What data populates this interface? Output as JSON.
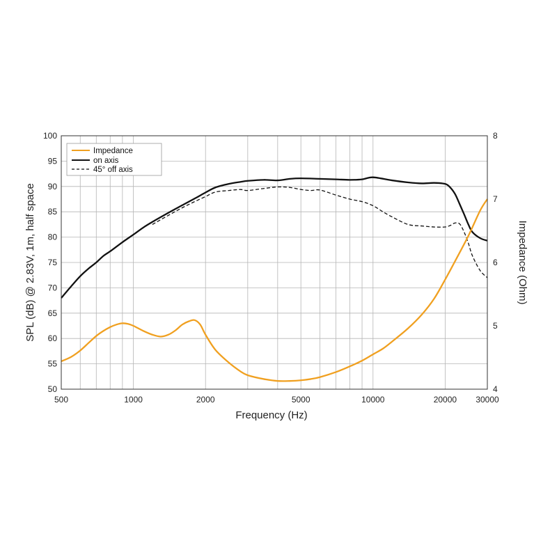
{
  "chart_data": {
    "type": "line",
    "xlabel": "Frequency (Hz)",
    "ylabel_left": "SPL (dB) @ 2.83V, 1m, half space",
    "ylabel_right": "Impedance (Ohm)",
    "x_scale": "log",
    "xlim": [
      500,
      30000
    ],
    "ylim_left": [
      50,
      100
    ],
    "ylim_right": [
      4,
      8
    ],
    "x_tick_labels": [
      "500",
      "1000",
      "2000",
      "5000",
      "10000",
      "20000",
      "30000"
    ],
    "y_tick_labels_left": [
      "50",
      "55",
      "60",
      "65",
      "70",
      "75",
      "80",
      "85",
      "90",
      "95",
      "100"
    ],
    "y_tick_labels_right": [
      "4",
      "5",
      "6",
      "7",
      "8"
    ],
    "grid": true,
    "legend_position": "top-left",
    "series": [
      {
        "name": "Impedance",
        "axis": "right",
        "color": "#F0A020",
        "style": "solid",
        "x": [
          500,
          550,
          600,
          650,
          700,
          750,
          800,
          850,
          900,
          950,
          1000,
          1100,
          1200,
          1300,
          1400,
          1500,
          1600,
          1700,
          1800,
          1900,
          2000,
          2200,
          2500,
          2800,
          3000,
          3500,
          4000,
          4500,
          5000,
          5500,
          6000,
          7000,
          8000,
          9000,
          10000,
          11000,
          12000,
          14000,
          16000,
          18000,
          20000,
          22000,
          25000,
          28000,
          30000
        ],
        "values": [
          4.44,
          4.51,
          4.61,
          4.73,
          4.84,
          4.92,
          4.98,
          5.02,
          5.04,
          5.03,
          5.0,
          4.92,
          4.86,
          4.83,
          4.86,
          4.93,
          5.02,
          5.07,
          5.09,
          5.02,
          4.86,
          4.62,
          4.42,
          4.28,
          4.22,
          4.16,
          4.13,
          4.13,
          4.14,
          4.16,
          4.19,
          4.27,
          4.36,
          4.45,
          4.55,
          4.64,
          4.75,
          4.96,
          5.18,
          5.43,
          5.73,
          6.02,
          6.42,
          6.82,
          7.0
        ]
      },
      {
        "name": "on axis",
        "axis": "left",
        "color": "#111111",
        "style": "solid",
        "x": [
          500,
          550,
          600,
          650,
          700,
          750,
          800,
          900,
          1000,
          1100,
          1200,
          1400,
          1600,
          1800,
          2000,
          2200,
          2500,
          2800,
          3000,
          3500,
          4000,
          4500,
          5000,
          6000,
          7000,
          8000,
          9000,
          10000,
          12000,
          14000,
          16000,
          18000,
          20000,
          21000,
          22000,
          23000,
          24000,
          25000,
          26000,
          28000,
          30000
        ],
        "values": [
          68.0,
          70.3,
          72.3,
          73.8,
          75.0,
          76.3,
          77.2,
          79.0,
          80.5,
          81.9,
          83.0,
          84.8,
          86.3,
          87.6,
          88.8,
          89.8,
          90.5,
          90.9,
          91.1,
          91.3,
          91.2,
          91.5,
          91.6,
          91.5,
          91.4,
          91.3,
          91.4,
          91.8,
          91.2,
          90.8,
          90.6,
          90.7,
          90.5,
          89.8,
          88.5,
          86.5,
          84.5,
          82.5,
          81.0,
          79.8,
          79.3
        ]
      },
      {
        "name": "45° off axis",
        "axis": "left",
        "color": "#111111",
        "style": "dashed",
        "x": [
          1200,
          1400,
          1600,
          1800,
          2000,
          2200,
          2500,
          2800,
          3000,
          3500,
          4000,
          4500,
          5000,
          5500,
          6000,
          7000,
          8000,
          9000,
          10000,
          11000,
          12000,
          14000,
          16000,
          18000,
          20000,
          21000,
          22000,
          23000,
          24000,
          25000,
          26000,
          28000,
          30000
        ],
        "values": [
          82.5,
          84.3,
          85.8,
          87.0,
          88.0,
          88.9,
          89.2,
          89.4,
          89.2,
          89.6,
          89.9,
          89.8,
          89.4,
          89.2,
          89.3,
          88.3,
          87.5,
          87.0,
          86.2,
          85.0,
          84.0,
          82.5,
          82.2,
          82.0,
          82.0,
          82.3,
          82.8,
          82.6,
          81.0,
          78.8,
          76.3,
          73.4,
          72.0
        ]
      }
    ]
  }
}
